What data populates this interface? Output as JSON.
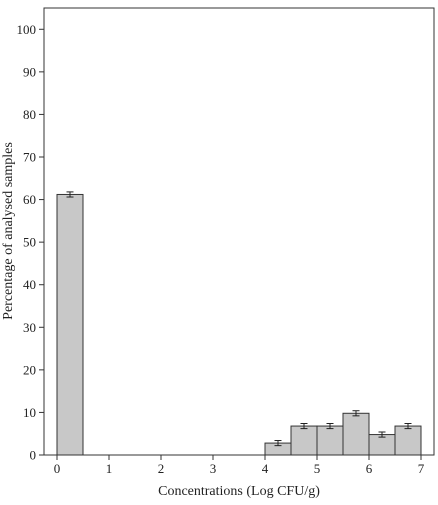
{
  "chart_data": {
    "type": "bar",
    "title": "",
    "xlabel": "Concentrations (Log CFU/g)",
    "ylabel": "Percentage of analysed samples",
    "xlim": [
      -0.25,
      7.25
    ],
    "ylim": [
      0,
      105
    ],
    "x_ticks": [
      0,
      1,
      2,
      3,
      4,
      5,
      6,
      7
    ],
    "y_ticks": [
      0,
      10,
      20,
      30,
      40,
      50,
      60,
      70,
      80,
      90,
      100
    ],
    "bin_width": 0.5,
    "bars": [
      {
        "x_start": 0.0,
        "value": 61.2,
        "error": 0.6
      },
      {
        "x_start": 4.0,
        "value": 2.8,
        "error": 0.6
      },
      {
        "x_start": 4.5,
        "value": 6.8,
        "error": 0.6
      },
      {
        "x_start": 5.0,
        "value": 6.8,
        "error": 0.6
      },
      {
        "x_start": 5.5,
        "value": 9.8,
        "error": 0.6
      },
      {
        "x_start": 6.0,
        "value": 4.8,
        "error": 0.6
      },
      {
        "x_start": 6.5,
        "value": 6.8,
        "error": 0.6
      }
    ],
    "grid": false,
    "colors": {
      "bar_fill": "#c8c8c8",
      "bar_stroke": "#333333",
      "axis": "#333333"
    }
  }
}
